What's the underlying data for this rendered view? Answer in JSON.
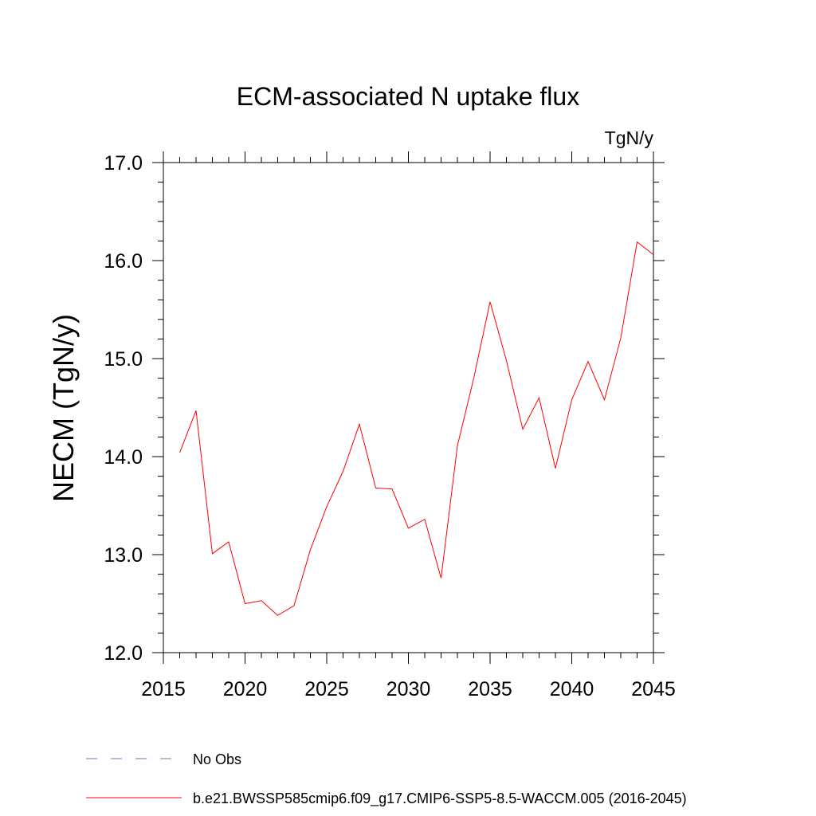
{
  "chart_data": {
    "type": "line",
    "title": "ECM-associated N uptake flux",
    "units": "TgN/y",
    "ylabel": "NECM  (TgN/y)",
    "xlabel": "",
    "xlim": [
      2015,
      2045
    ],
    "ylim": [
      12.0,
      17.0
    ],
    "x_ticks": [
      "2015",
      "2020",
      "2025",
      "2030",
      "2035",
      "2040",
      "2045"
    ],
    "y_ticks": [
      "12.0",
      "13.0",
      "14.0",
      "15.0",
      "16.0",
      "17.0"
    ],
    "grid": false,
    "series": [
      {
        "name": "b.e21.BWSSP585cmip6.f09_g17.CMIP6-SSP5-8.5-WACCM.005 (2016-2045)",
        "color": "#ff0000",
        "x": [
          2016,
          2017,
          2018,
          2019,
          2020,
          2021,
          2022,
          2023,
          2024,
          2025,
          2026,
          2027,
          2028,
          2029,
          2030,
          2031,
          2032,
          2033,
          2034,
          2035,
          2036,
          2037,
          2038,
          2039,
          2040,
          2041,
          2042,
          2043,
          2044,
          2045
        ],
        "y": [
          14.04,
          14.47,
          13.01,
          13.13,
          12.5,
          12.53,
          12.38,
          12.48,
          13.05,
          13.49,
          13.85,
          14.33,
          13.68,
          13.67,
          13.27,
          13.36,
          12.76,
          14.11,
          14.8,
          15.58,
          14.98,
          14.28,
          14.6,
          13.88,
          14.58,
          14.97,
          14.58,
          15.21,
          16.19,
          16.06
        ]
      }
    ],
    "legend": {
      "placement": "bottom",
      "entries": [
        {
          "label": "No Obs",
          "color": "#7a6fb5",
          "style": "dashed"
        },
        {
          "label": "b.e21.BWSSP585cmip6.f09_g17.CMIP6-SSP5-8.5-WACCM.005 (2016-2045)",
          "color": "#ff0000",
          "style": "solid"
        }
      ]
    }
  }
}
